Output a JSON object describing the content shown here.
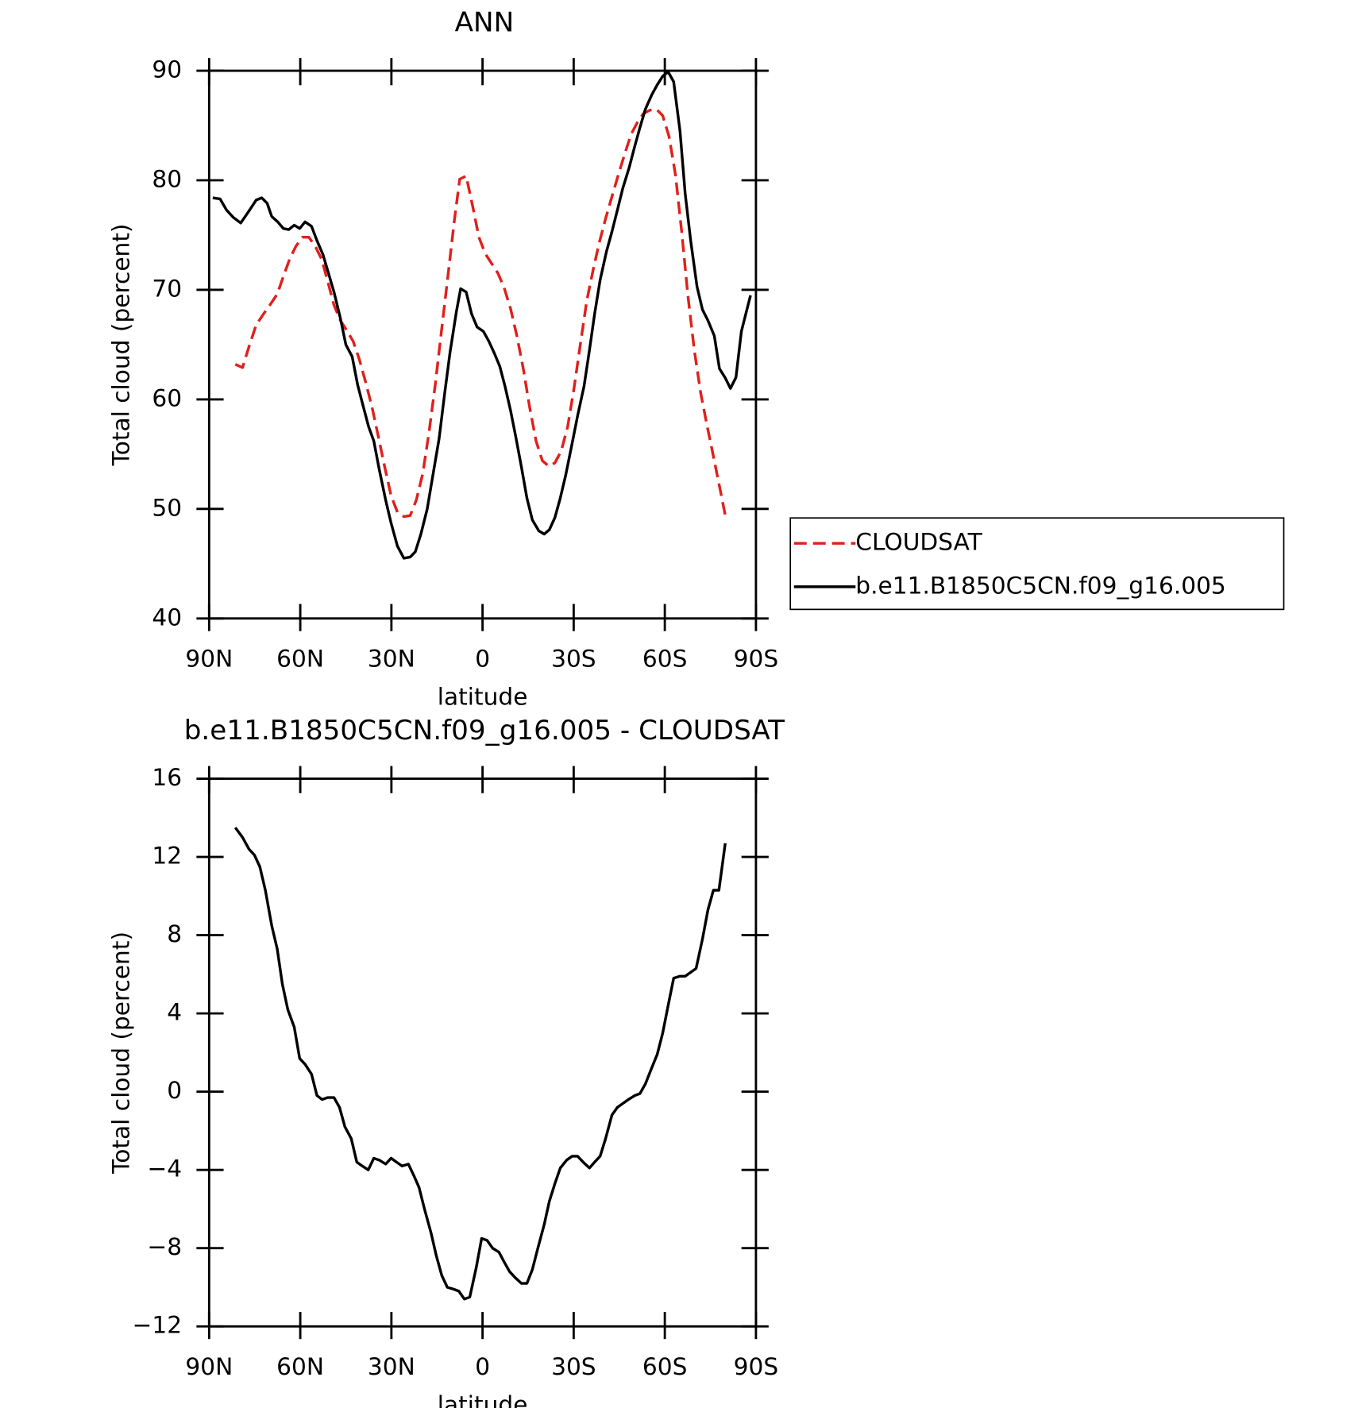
{
  "chart_data": [
    {
      "type": "line",
      "title": "ANN",
      "xlabel": "latitude",
      "ylabel": "Total cloud (percent)",
      "xlim": [
        90,
        -90
      ],
      "ylim": [
        40,
        90
      ],
      "xticks": [
        {
          "value": 90,
          "label": "90N"
        },
        {
          "value": 60,
          "label": "60N"
        },
        {
          "value": 30,
          "label": "30N"
        },
        0,
        {
          "value": -30,
          "label": "30S"
        },
        {
          "value": -60,
          "label": "60S"
        },
        {
          "value": -90,
          "label": "90S"
        }
      ],
      "yticks": [
        40,
        50,
        60,
        70,
        80,
        90
      ],
      "legend": "outside-right",
      "series": [
        {
          "name": "CLOUDSAT",
          "color": "#e0201b",
          "dash": "dashed",
          "x": [
            81.4,
            79.0,
            76.9,
            74.5,
            72.1,
            70.0,
            67.6,
            65.6,
            63.5,
            61.4,
            59.3,
            57.2,
            55.1,
            53.0,
            51.0,
            48.9,
            46.8,
            44.7,
            42.6,
            40.5,
            38.4,
            36.4,
            34.3,
            32.2,
            30.1,
            28.0,
            25.9,
            23.8,
            21.8,
            19.7,
            17.6,
            15.5,
            13.4,
            11.3,
            9.2,
            7.5,
            5.4,
            3.3,
            1.2,
            -0.9,
            -3.0,
            -5.1,
            -7.1,
            -9.2,
            -11.3,
            -13.4,
            -15.5,
            -17.6,
            -19.7,
            -21.8,
            -23.8,
            -25.9,
            -28.0,
            -30.1,
            -32.2,
            -34.3,
            -36.4,
            -38.4,
            -40.5,
            -42.6,
            -44.7,
            -46.8,
            -48.9,
            -51.0,
            -53.0,
            -55.1,
            -57.2,
            -59.3,
            -61.4,
            -63.5,
            -65.6,
            -67.6,
            -69.7,
            -71.8,
            -73.9,
            -76.0,
            -78.1,
            -80.2
          ],
          "values": [
            63.2,
            62.9,
            64.8,
            66.8,
            67.8,
            68.6,
            69.6,
            71.2,
            72.8,
            74.0,
            74.8,
            74.8,
            74.0,
            72.8,
            70.8,
            68.6,
            67.2,
            66.3,
            65.3,
            63.6,
            61.5,
            59.3,
            56.6,
            53.8,
            51.2,
            49.7,
            49.3,
            49.4,
            50.8,
            53.2,
            57.0,
            61.5,
            66.5,
            71.5,
            76.5,
            80.1,
            80.4,
            77.7,
            74.8,
            73.3,
            72.4,
            71.5,
            70.2,
            68.3,
            65.8,
            62.8,
            59.3,
            56.2,
            54.4,
            53.9,
            54.2,
            55.3,
            57.5,
            61.0,
            65.0,
            69.0,
            71.8,
            74.3,
            76.5,
            78.5,
            80.5,
            82.4,
            84.2,
            85.3,
            86.1,
            86.4,
            86.5,
            85.9,
            84.0,
            80.5,
            75.2,
            69.5,
            64.5,
            60.6,
            57.6,
            54.8,
            51.9,
            49.0
          ]
        },
        {
          "name": "b.e11.B1850C5CN.f09_g16.005",
          "color": "#000000",
          "dash": "solid",
          "x": [
            88.8,
            86.4,
            84.3,
            82.0,
            79.6,
            76.9,
            74.5,
            72.7,
            70.9,
            69.4,
            67.4,
            65.6,
            63.8,
            62.0,
            60.2,
            58.4,
            56.3,
            54.5,
            52.5,
            50.7,
            48.9,
            46.8,
            45.0,
            42.9,
            41.1,
            39.3,
            37.5,
            35.8,
            34.0,
            31.9,
            30.1,
            28.0,
            25.9,
            23.8,
            22.1,
            20.3,
            18.2,
            16.4,
            14.3,
            12.5,
            10.7,
            8.6,
            7.2,
            5.4,
            3.6,
            1.8,
            -0.3,
            -2.1,
            -3.9,
            -5.7,
            -7.4,
            -9.2,
            -11.0,
            -12.8,
            -14.6,
            -16.4,
            -18.5,
            -20.3,
            -22.0,
            -23.8,
            -25.6,
            -27.4,
            -29.5,
            -31.3,
            -33.4,
            -35.2,
            -36.9,
            -38.7,
            -40.8,
            -42.6,
            -44.4,
            -46.2,
            -48.3,
            -50.1,
            -51.8,
            -53.6,
            -55.7,
            -57.5,
            -59.3,
            -61.1,
            -62.9,
            -65.0,
            -66.7,
            -68.5,
            -70.6,
            -72.4,
            -74.2,
            -76.3,
            -78.0,
            -79.8,
            -81.6,
            -83.4,
            -85.2,
            -88.2
          ],
          "values": [
            78.4,
            78.3,
            77.3,
            76.6,
            76.1,
            77.2,
            78.2,
            78.4,
            77.9,
            76.7,
            76.2,
            75.6,
            75.5,
            75.9,
            75.6,
            76.2,
            75.8,
            74.5,
            73.2,
            71.5,
            69.8,
            67.4,
            65.0,
            63.9,
            61.3,
            59.4,
            57.5,
            56.2,
            53.6,
            50.8,
            48.7,
            46.6,
            45.5,
            45.6,
            46.1,
            47.7,
            50.0,
            53.0,
            56.4,
            60.5,
            64.3,
            68.0,
            70.1,
            69.8,
            67.8,
            66.6,
            66.2,
            65.3,
            64.2,
            63.0,
            61.2,
            59.0,
            56.5,
            53.8,
            51.0,
            49.0,
            48.0,
            47.7,
            48.1,
            49.2,
            51.0,
            53.1,
            56.0,
            58.5,
            61.2,
            64.5,
            67.8,
            70.9,
            73.5,
            75.3,
            77.3,
            79.3,
            81.2,
            83.1,
            84.8,
            86.5,
            87.8,
            88.7,
            89.5,
            89.9,
            89.0,
            84.5,
            78.8,
            74.5,
            70.3,
            68.2,
            67.2,
            65.8,
            62.8,
            62.0,
            61.0,
            62.0,
            66.2,
            69.5
          ]
        }
      ]
    },
    {
      "type": "line",
      "title": "b.e11.B1850C5CN.f09_g16.005 - CLOUDSAT",
      "xlabel": "latitude",
      "ylabel": "Total cloud (percent)",
      "xlim": [
        90,
        -90
      ],
      "ylim": [
        -12,
        16
      ],
      "xticks": [
        {
          "value": 90,
          "label": "90N"
        },
        {
          "value": 60,
          "label": "60N"
        },
        {
          "value": 30,
          "label": "30N"
        },
        0,
        {
          "value": -30,
          "label": "30S"
        },
        {
          "value": -60,
          "label": "60S"
        },
        {
          "value": -90,
          "label": "90S"
        }
      ],
      "yticks": [
        {
          "value": -12,
          "label": "−12"
        },
        {
          "value": -8,
          "label": "−8"
        },
        {
          "value": -4,
          "label": "−4"
        },
        0,
        4,
        8,
        12,
        16
      ],
      "series": [
        {
          "color": "#000000",
          "dash": "solid",
          "x": [
            81.4,
            79.0,
            76.9,
            75.1,
            73.3,
            71.5,
            69.4,
            67.6,
            65.9,
            64.1,
            62.0,
            60.2,
            58.4,
            56.3,
            54.5,
            52.8,
            51.0,
            48.9,
            47.1,
            45.3,
            43.2,
            41.4,
            39.6,
            37.6,
            35.8,
            34.0,
            31.9,
            30.1,
            28.3,
            26.5,
            24.4,
            22.6,
            20.9,
            19.1,
            17.0,
            15.2,
            13.4,
            11.6,
            9.5,
            7.8,
            6.0,
            4.2,
            2.1,
            0.3,
            -1.5,
            -3.3,
            -5.4,
            -7.1,
            -8.9,
            -10.7,
            -12.8,
            -14.6,
            -16.4,
            -18.2,
            -20.3,
            -22.0,
            -23.8,
            -25.6,
            -27.7,
            -29.5,
            -31.3,
            -33.1,
            -35.2,
            -36.9,
            -38.7,
            -40.5,
            -42.6,
            -44.4,
            -46.2,
            -48.0,
            -50.1,
            -51.8,
            -53.6,
            -55.4,
            -57.5,
            -59.3,
            -61.1,
            -62.9,
            -65.0,
            -66.7,
            -68.5,
            -70.3,
            -72.4,
            -74.2,
            -76.0,
            -77.8,
            -79.9
          ],
          "values": [
            13.5,
            13.0,
            12.4,
            12.1,
            11.5,
            10.3,
            8.5,
            7.3,
            5.5,
            4.2,
            3.3,
            1.7,
            1.4,
            0.9,
            -0.2,
            -0.4,
            -0.3,
            -0.3,
            -0.8,
            -1.8,
            -2.4,
            -3.6,
            -3.8,
            -4.0,
            -3.4,
            -3.5,
            -3.7,
            -3.4,
            -3.6,
            -3.8,
            -3.7,
            -4.3,
            -4.9,
            -6.0,
            -7.2,
            -8.4,
            -9.4,
            -10.0,
            -10.1,
            -10.2,
            -10.6,
            -10.5,
            -9.0,
            -7.5,
            -7.6,
            -8.0,
            -8.2,
            -8.7,
            -9.2,
            -9.5,
            -9.8,
            -9.8,
            -9.1,
            -8.0,
            -6.8,
            -5.6,
            -4.7,
            -3.9,
            -3.5,
            -3.3,
            -3.3,
            -3.6,
            -3.9,
            -3.6,
            -3.3,
            -2.4,
            -1.2,
            -0.8,
            -0.6,
            -0.4,
            -0.2,
            -0.1,
            0.4,
            1.1,
            1.9,
            3.0,
            4.4,
            5.8,
            5.9,
            5.9,
            6.1,
            6.3,
            7.8,
            9.3,
            10.3,
            10.3,
            12.7
          ]
        }
      ]
    }
  ]
}
